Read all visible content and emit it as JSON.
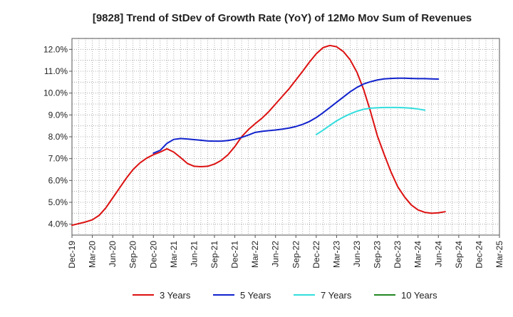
{
  "chart_data": {
    "type": "line",
    "title": "[9828]  Trend of StDev of Growth Rate (YoY) of 12Mo Mov Sum of Revenues",
    "xlabel": "",
    "ylabel": "",
    "ylim": [
      3.5,
      12.5
    ],
    "y_ticks": [
      4.0,
      5.0,
      6.0,
      7.0,
      8.0,
      9.0,
      10.0,
      11.0,
      12.0
    ],
    "y_tick_labels": [
      "4.0%",
      "5.0%",
      "6.0%",
      "7.0%",
      "8.0%",
      "9.0%",
      "10.0%",
      "11.0%",
      "12.0%"
    ],
    "x_tick_labels": [
      "Dec-19",
      "Mar-20",
      "Jun-20",
      "Sep-20",
      "Dec-20",
      "Mar-21",
      "Jun-21",
      "Sep-21",
      "Dec-21",
      "Mar-22",
      "Jun-22",
      "Sep-22",
      "Dec-22",
      "Mar-23",
      "Jun-23",
      "Sep-23",
      "Dec-23",
      "Mar-24",
      "Jun-24",
      "Sep-24",
      "Dec-24",
      "Mar-25"
    ],
    "grid": true,
    "legend_position": "bottom",
    "series": [
      {
        "name": "3 Years",
        "color": "#dd1111",
        "x": [
          0,
          2,
          3,
          4,
          5,
          6,
          7,
          8,
          9,
          10,
          11,
          12,
          13,
          14,
          15,
          16,
          17,
          18,
          19,
          20,
          21,
          22,
          23,
          24,
          25,
          26,
          27,
          28,
          29,
          30,
          31,
          32,
          33,
          34,
          35,
          36,
          37,
          38,
          39,
          40,
          41,
          42,
          43,
          44,
          45,
          46,
          47,
          48,
          49,
          50,
          51,
          52,
          53,
          54,
          55,
          56,
          57,
          58,
          59,
          60
        ],
        "values": [
          3.95,
          4.1,
          4.2,
          4.4,
          4.75,
          5.2,
          5.65,
          6.1,
          6.5,
          6.8,
          7.02,
          7.18,
          7.3,
          7.45,
          7.3,
          7.05,
          6.78,
          6.65,
          6.63,
          6.65,
          6.75,
          6.92,
          7.18,
          7.55,
          8.0,
          8.33,
          8.6,
          8.85,
          9.15,
          9.5,
          9.85,
          10.2,
          10.6,
          11.0,
          11.42,
          11.8,
          12.08,
          12.18,
          12.12,
          11.9,
          11.52,
          10.95,
          10.15,
          9.15,
          8.05,
          7.2,
          6.4,
          5.72,
          5.25,
          4.88,
          4.65,
          4.54,
          4.5,
          4.52,
          4.57,
          null,
          null,
          null,
          null,
          null
        ]
      },
      {
        "name": "5 Years",
        "color": "#1122cc",
        "x": [
          12,
          13,
          14,
          15,
          16,
          17,
          18,
          19,
          20,
          21,
          22,
          23,
          24,
          25,
          26,
          27,
          28,
          29,
          30,
          31,
          32,
          33,
          34,
          35,
          36,
          37,
          38,
          39,
          40,
          41,
          42,
          43,
          44,
          45,
          46,
          47,
          48,
          49,
          50,
          51,
          52,
          53,
          54,
          55,
          56,
          57,
          58,
          59,
          60
        ],
        "values": [
          7.25,
          7.38,
          7.7,
          7.88,
          7.92,
          7.9,
          7.87,
          7.84,
          7.81,
          7.8,
          7.8,
          7.83,
          7.88,
          7.97,
          8.08,
          8.2,
          8.25,
          8.28,
          8.31,
          8.35,
          8.4,
          8.47,
          8.57,
          8.7,
          8.88,
          9.1,
          9.34,
          9.58,
          9.82,
          10.06,
          10.26,
          10.42,
          10.52,
          10.6,
          10.65,
          10.67,
          10.68,
          10.68,
          10.67,
          10.66,
          10.66,
          10.65,
          10.64,
          null,
          null,
          null,
          null,
          null,
          null
        ]
      },
      {
        "name": "7 Years",
        "color": "#33dddd",
        "x": [
          36,
          37,
          38,
          39,
          40,
          41,
          42,
          43,
          44,
          45,
          46,
          47,
          48,
          49,
          50,
          51,
          52,
          53,
          54,
          55,
          56,
          57,
          58,
          59,
          60
        ],
        "values": [
          8.1,
          8.3,
          8.52,
          8.73,
          8.9,
          9.05,
          9.17,
          9.26,
          9.31,
          9.33,
          9.34,
          9.34,
          9.34,
          9.33,
          9.31,
          9.27,
          9.22,
          null,
          null,
          null,
          null,
          null,
          null,
          null,
          null
        ]
      },
      {
        "name": "10 Years",
        "color": "#228822",
        "x": [],
        "values": []
      }
    ]
  }
}
